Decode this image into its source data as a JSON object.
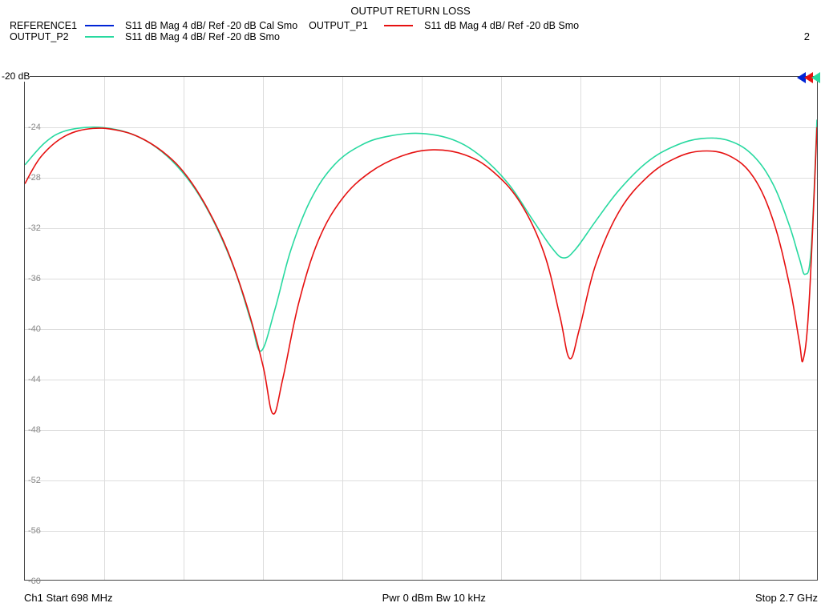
{
  "title": "OUTPUT RETURN LOSS",
  "corner_number": "2",
  "ref_label": "-20 dB",
  "legend": {
    "items": [
      {
        "name": "REFERENCE1",
        "color": "#0024d6",
        "desc": "S11  dB Mag  4 dB/ Ref -20 dB  Cal Smo"
      },
      {
        "name": "OUTPUT_P1",
        "color": "#e61010",
        "desc": "S11  dB Mag  4 dB/ Ref -20 dB  Smo"
      },
      {
        "name": "OUTPUT_P2",
        "color": "#28d9a0",
        "desc": "S11  dB Mag  4 dB/ Ref -20 dB  Smo"
      }
    ]
  },
  "chart": {
    "type": "line",
    "background_color": "#ffffff",
    "grid_color": "#dddddd",
    "border_color": "#444444",
    "xlim": [
      698,
      2700
    ],
    "ylim": [
      -60,
      -20
    ],
    "ytick_step": 4,
    "ytick_labels": [
      "-24",
      "-28",
      "-32",
      "-36",
      "-40",
      "-44",
      "-48",
      "-52",
      "-56",
      "-60"
    ],
    "line_width": 1.6,
    "series": [
      {
        "name": "OUTPUT_P2",
        "color": "#28d9a0",
        "points": [
          [
            698,
            -27.0
          ],
          [
            750,
            -25.2
          ],
          [
            800,
            -24.3
          ],
          [
            870,
            -24.0
          ],
          [
            930,
            -24.2
          ],
          [
            980,
            -24.7
          ],
          [
            1030,
            -25.6
          ],
          [
            1080,
            -27.0
          ],
          [
            1130,
            -29.0
          ],
          [
            1180,
            -31.8
          ],
          [
            1230,
            -35.5
          ],
          [
            1270,
            -39.5
          ],
          [
            1295,
            -41.8
          ],
          [
            1330,
            -38.5
          ],
          [
            1370,
            -33.8
          ],
          [
            1420,
            -29.8
          ],
          [
            1480,
            -27.0
          ],
          [
            1550,
            -25.4
          ],
          [
            1620,
            -24.7
          ],
          [
            1700,
            -24.5
          ],
          [
            1780,
            -25.0
          ],
          [
            1850,
            -26.3
          ],
          [
            1920,
            -28.5
          ],
          [
            1980,
            -31.3
          ],
          [
            2030,
            -33.6
          ],
          [
            2060,
            -34.4
          ],
          [
            2090,
            -33.7
          ],
          [
            2140,
            -31.5
          ],
          [
            2200,
            -29.0
          ],
          [
            2270,
            -26.8
          ],
          [
            2340,
            -25.5
          ],
          [
            2410,
            -24.9
          ],
          [
            2480,
            -25.1
          ],
          [
            2540,
            -26.3
          ],
          [
            2590,
            -28.6
          ],
          [
            2630,
            -31.8
          ],
          [
            2655,
            -34.4
          ],
          [
            2670,
            -35.7
          ],
          [
            2685,
            -33.8
          ],
          [
            2700,
            -23.4
          ]
        ]
      },
      {
        "name": "OUTPUT_P1",
        "color": "#e61010",
        "points": [
          [
            698,
            -28.5
          ],
          [
            740,
            -26.3
          ],
          [
            800,
            -24.7
          ],
          [
            870,
            -24.1
          ],
          [
            940,
            -24.3
          ],
          [
            1000,
            -25.0
          ],
          [
            1060,
            -26.3
          ],
          [
            1110,
            -28.0
          ],
          [
            1160,
            -30.5
          ],
          [
            1210,
            -33.8
          ],
          [
            1260,
            -38.3
          ],
          [
            1300,
            -43.0
          ],
          [
            1325,
            -46.8
          ],
          [
            1350,
            -44.0
          ],
          [
            1390,
            -38.0
          ],
          [
            1440,
            -33.0
          ],
          [
            1500,
            -29.7
          ],
          [
            1570,
            -27.6
          ],
          [
            1650,
            -26.3
          ],
          [
            1730,
            -25.8
          ],
          [
            1810,
            -26.2
          ],
          [
            1880,
            -27.5
          ],
          [
            1950,
            -30.0
          ],
          [
            2010,
            -34.0
          ],
          [
            2050,
            -39.0
          ],
          [
            2075,
            -42.4
          ],
          [
            2100,
            -40.0
          ],
          [
            2140,
            -35.0
          ],
          [
            2200,
            -30.7
          ],
          [
            2270,
            -28.0
          ],
          [
            2340,
            -26.5
          ],
          [
            2410,
            -25.9
          ],
          [
            2480,
            -26.3
          ],
          [
            2540,
            -28.0
          ],
          [
            2590,
            -31.5
          ],
          [
            2630,
            -36.5
          ],
          [
            2655,
            -41.0
          ],
          [
            2665,
            -42.5
          ],
          [
            2680,
            -38.0
          ],
          [
            2700,
            -24.0
          ]
        ]
      }
    ],
    "marker_colors": [
      "#0024d6",
      "#e61010",
      "#28d9a0"
    ]
  },
  "footer": {
    "left": "Ch1  Start  698 MHz",
    "center": "Pwr  0 dBm  Bw  10 kHz",
    "right": "Stop  2.7 GHz"
  }
}
